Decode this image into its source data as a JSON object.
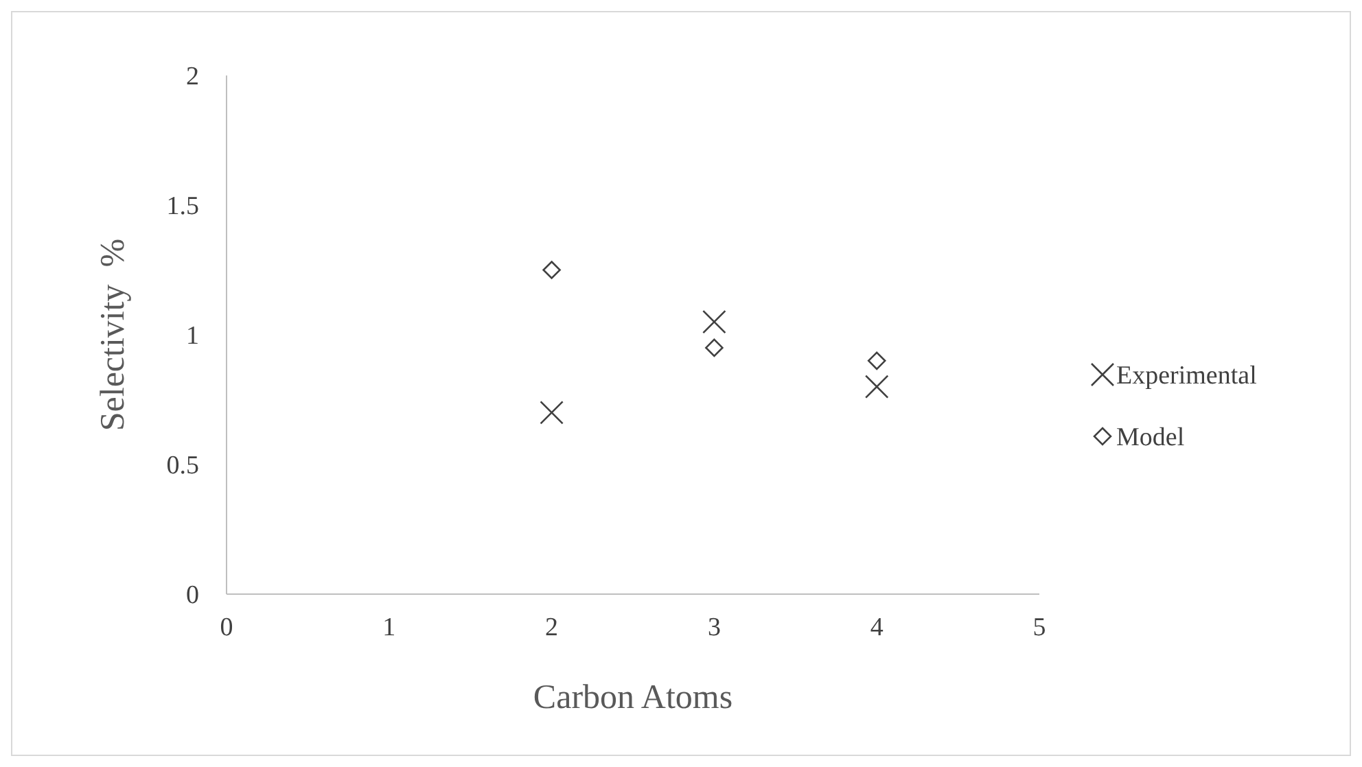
{
  "chart_data": {
    "type": "scatter",
    "xlabel": "Carbon Atoms",
    "ylabel": "Selectivity  %",
    "x": [
      2,
      3,
      4
    ],
    "series": [
      {
        "name": "Experimental",
        "color": "#404040",
        "marker": "cross",
        "values": [
          0.7,
          1.05,
          0.8
        ]
      },
      {
        "name": "Model",
        "color": "#404040",
        "marker": "diamond",
        "values": [
          1.25,
          0.95,
          0.9
        ]
      }
    ],
    "xlim": [
      0,
      5
    ],
    "xticks": [
      0,
      1,
      2,
      3,
      4,
      5
    ],
    "ylim": [
      0,
      2
    ],
    "yticks": [
      0,
      0.5,
      1,
      1.5,
      2
    ],
    "grid": false,
    "legend": "right"
  }
}
